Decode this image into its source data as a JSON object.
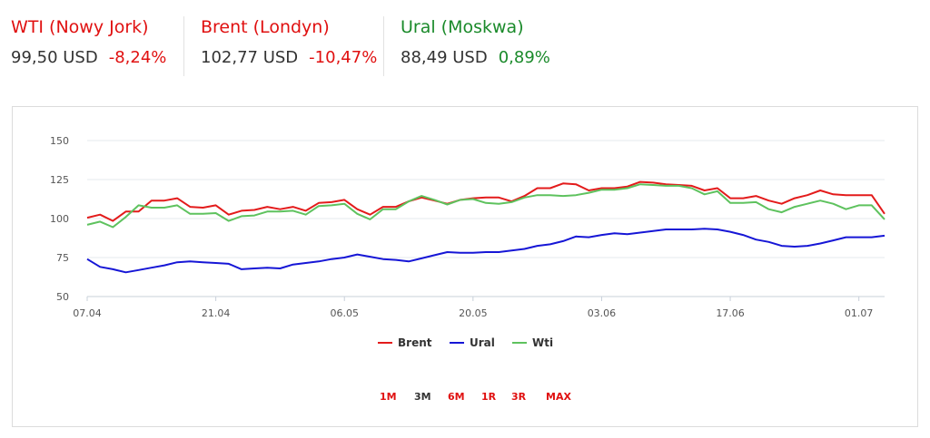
{
  "tickers": [
    {
      "name": "WTI (Nowy Jork)",
      "price": "99,50 USD",
      "change": "-8,24%",
      "name_color": "#e01010",
      "change_color": "#e01010"
    },
    {
      "name": "Brent (Londyn)",
      "price": "102,77 USD",
      "change": "-10,47%",
      "name_color": "#e01010",
      "change_color": "#e01010"
    },
    {
      "name": "Ural (Moskwa)",
      "price": "88,49 USD",
      "change": "0,89%",
      "name_color": "#1a8a2a",
      "change_color": "#1a8a2a"
    }
  ],
  "ranges": [
    {
      "label": "1M",
      "color": "#e01010"
    },
    {
      "label": "3M",
      "color": "#333333"
    },
    {
      "label": "6M",
      "color": "#e01010"
    },
    {
      "label": "1R",
      "color": "#e01010"
    },
    {
      "label": "3R",
      "color": "#e01010"
    },
    {
      "label": "MAX",
      "color": "#e01010"
    }
  ],
  "chart_data": {
    "type": "line",
    "ylim": [
      50,
      150
    ],
    "yticks": [
      "50",
      "75",
      "100",
      "125",
      "150"
    ],
    "xticks": [
      "07.04",
      "21.04",
      "06.05",
      "20.05",
      "03.06",
      "17.06",
      "01.07"
    ],
    "grid": true,
    "legend_position": "bottom-center",
    "series": [
      {
        "name": "Brent",
        "color": "#e31b1b",
        "values": [
          100.5,
          102.5,
          98.5,
          104.5,
          104.5,
          111.5,
          111.5,
          113,
          107.5,
          107,
          108.5,
          102.5,
          105,
          105.5,
          107.5,
          106,
          107.5,
          105,
          110,
          110.5,
          112,
          106,
          102.5,
          107.5,
          107.5,
          111,
          113.5,
          111.5,
          109.5,
          112,
          113,
          113.5,
          113.5,
          111,
          114.5,
          119.5,
          119.5,
          122.5,
          122,
          118,
          119.5,
          119.5,
          120.5,
          123.5,
          123,
          122,
          121.5,
          121,
          118,
          119.5,
          113,
          113,
          114.5,
          111.5,
          109.5,
          113,
          115,
          118,
          115.5,
          115,
          115,
          115,
          103
        ]
      },
      {
        "name": "Ural",
        "color": "#1616d6",
        "values": [
          74,
          69,
          67.5,
          65.5,
          67,
          68.5,
          70,
          72,
          72.5,
          72,
          71.5,
          71,
          67.5,
          68,
          68.5,
          68,
          70.5,
          71.5,
          72.5,
          74,
          75,
          77,
          75.5,
          74,
          73.5,
          72.5,
          74.5,
          76.5,
          78.5,
          78,
          78,
          78.5,
          78.5,
          79.5,
          80.5,
          82.5,
          83.5,
          85.5,
          88.5,
          88,
          89.5,
          90.5,
          90,
          91,
          92,
          93,
          93,
          93,
          93.5,
          93,
          91.5,
          89.5,
          86.5,
          85,
          82.5,
          82,
          82.5,
          84,
          86,
          88,
          88,
          88,
          89
        ]
      },
      {
        "name": "Wti",
        "color": "#5ec25e",
        "values": [
          96,
          98,
          94.5,
          101,
          108.5,
          107,
          107,
          108.5,
          103,
          103,
          103.5,
          98.5,
          101.5,
          102,
          104.5,
          104.5,
          105,
          102.5,
          108,
          108.5,
          109.5,
          103,
          99.5,
          106,
          106,
          111,
          114.5,
          112,
          109,
          112,
          112.5,
          110,
          109.5,
          110.5,
          113.5,
          115,
          115,
          114.5,
          115,
          116.5,
          118.5,
          118.5,
          119.5,
          122,
          121.5,
          121,
          121,
          119.5,
          115.5,
          117.5,
          110,
          110,
          110.5,
          106,
          104,
          107.5,
          109.5,
          111.5,
          109.5,
          106,
          108.5,
          108.5,
          99.5
        ]
      }
    ]
  }
}
